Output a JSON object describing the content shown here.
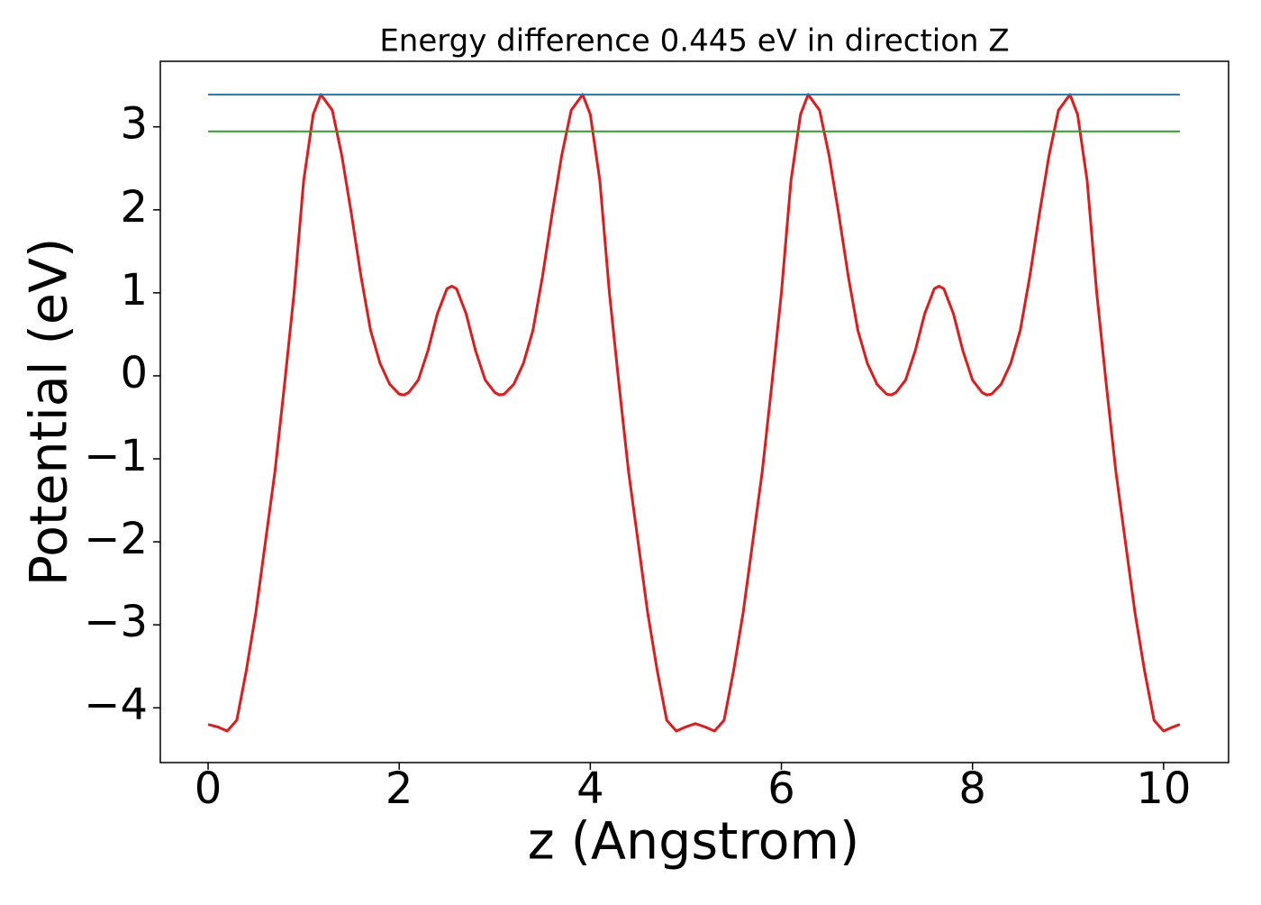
{
  "chart_data": {
    "type": "line",
    "title": "Energy difference 0.445 eV in direction Z",
    "xlabel": "z (Angstrom)",
    "ylabel": "Potential (eV)",
    "xlim": [
      -0.5,
      10.68
    ],
    "ylim": [
      -4.66,
      3.79
    ],
    "xticks": [
      0,
      2,
      4,
      6,
      8,
      10
    ],
    "yticks": [
      {
        "value": -4,
        "label": "−4"
      },
      {
        "value": -3,
        "label": "−3"
      },
      {
        "value": -2,
        "label": "−2"
      },
      {
        "value": -1,
        "label": "−1"
      },
      0,
      1,
      2,
      3
    ],
    "grid": false,
    "series": [
      {
        "color": "#e31a1c",
        "x": [
          0.0,
          0.1,
          0.2,
          0.3,
          0.4,
          0.5,
          0.6,
          0.7,
          0.8,
          0.9,
          1.0,
          1.1,
          1.18,
          1.3,
          1.4,
          1.5,
          1.6,
          1.7,
          1.8,
          1.9,
          2.0,
          2.05,
          2.1,
          2.2,
          2.3,
          2.4,
          2.5,
          2.55,
          2.6,
          2.7,
          2.8,
          2.9,
          3.0,
          3.05,
          3.1,
          3.2,
          3.3,
          3.4,
          3.5,
          3.6,
          3.7,
          3.8,
          3.92,
          4.0,
          4.1,
          4.2,
          4.3,
          4.4,
          4.5,
          4.6,
          4.7,
          4.8,
          4.9,
          5.0,
          5.1,
          5.2,
          5.3,
          5.4,
          5.5,
          5.6,
          5.7,
          5.8,
          5.9,
          6.0,
          6.1,
          6.2,
          6.28,
          6.4,
          6.5,
          6.6,
          6.7,
          6.8,
          6.9,
          7.0,
          7.1,
          7.15,
          7.2,
          7.3,
          7.4,
          7.5,
          7.6,
          7.65,
          7.7,
          7.8,
          7.9,
          8.0,
          8.1,
          8.15,
          8.2,
          8.3,
          8.4,
          8.5,
          8.6,
          8.7,
          8.8,
          8.9,
          9.02,
          9.1,
          9.2,
          9.3,
          9.4,
          9.5,
          9.6,
          9.7,
          9.8,
          9.9,
          10.0,
          10.1,
          10.17
        ],
        "values": [
          -4.2,
          -4.23,
          -4.28,
          -4.15,
          -3.55,
          -2.85,
          -2.0,
          -1.15,
          -0.1,
          1.0,
          2.35,
          3.15,
          3.39,
          3.2,
          2.65,
          1.95,
          1.2,
          0.55,
          0.15,
          -0.1,
          -0.22,
          -0.23,
          -0.2,
          -0.05,
          0.3,
          0.75,
          1.05,
          1.08,
          1.05,
          0.75,
          0.3,
          -0.05,
          -0.2,
          -0.23,
          -0.22,
          -0.1,
          0.15,
          0.55,
          1.2,
          1.95,
          2.65,
          3.2,
          3.39,
          3.15,
          2.35,
          1.0,
          -0.1,
          -1.15,
          -2.0,
          -2.85,
          -3.55,
          -4.15,
          -4.28,
          -4.23,
          -4.19,
          -4.23,
          -4.28,
          -4.15,
          -3.55,
          -2.85,
          -2.0,
          -1.15,
          -0.1,
          1.0,
          2.35,
          3.15,
          3.39,
          3.2,
          2.65,
          1.95,
          1.2,
          0.55,
          0.15,
          -0.1,
          -0.22,
          -0.23,
          -0.2,
          -0.05,
          0.3,
          0.75,
          1.05,
          1.08,
          1.05,
          0.75,
          0.3,
          -0.05,
          -0.2,
          -0.23,
          -0.22,
          -0.1,
          0.15,
          0.55,
          1.2,
          1.95,
          2.65,
          3.2,
          3.39,
          3.15,
          2.35,
          1.0,
          -0.1,
          -1.15,
          -2.0,
          -2.85,
          -3.55,
          -4.15,
          -4.28,
          -4.23,
          -4.2
        ]
      },
      {
        "color": "#1f77b4",
        "x": [
          0.0,
          10.17
        ],
        "values": [
          3.39,
          3.39
        ]
      },
      {
        "color": "#2ca02c",
        "x": [
          0.0,
          10.17
        ],
        "values": [
          2.945,
          2.945
        ]
      }
    ]
  }
}
